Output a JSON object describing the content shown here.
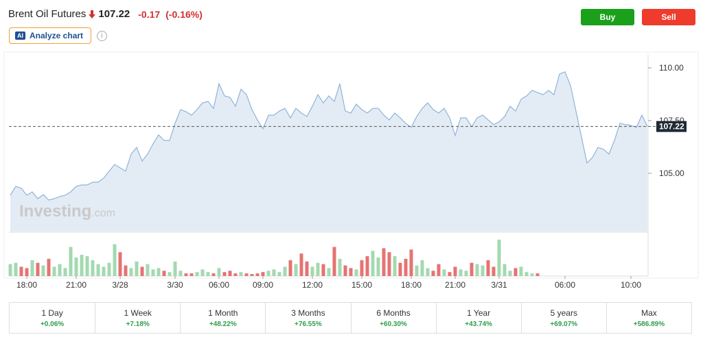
{
  "header": {
    "title": "Brent Oil Futures",
    "price": "107.22",
    "change": "-0.17",
    "change_pct": "(-0.16%)"
  },
  "buttons": {
    "buy": "Buy",
    "sell": "Sell",
    "ai_badge": "AI",
    "analyze": "Analyze chart",
    "info": "i"
  },
  "chart_data": {
    "type": "area",
    "watermark": {
      "brand": "Investing",
      "suffix": ".com"
    },
    "categories": [
      null,
      null,
      null,
      "18:00",
      null,
      null,
      null,
      null,
      null,
      null,
      null,
      null,
      "21:00",
      null,
      null,
      null,
      null,
      null,
      null,
      null,
      "3/28",
      null,
      null,
      null,
      null,
      null,
      null,
      null,
      null,
      null,
      "3/30",
      null,
      null,
      null,
      null,
      null,
      null,
      null,
      "06:00",
      null,
      null,
      null,
      null,
      null,
      null,
      null,
      "09:00",
      null,
      null,
      null,
      null,
      null,
      null,
      null,
      null,
      "12:00",
      null,
      null,
      null,
      null,
      null,
      null,
      null,
      null,
      "15:00",
      null,
      null,
      null,
      null,
      null,
      null,
      null,
      null,
      "18:00",
      null,
      null,
      null,
      null,
      null,
      null,
      null,
      "21:00",
      null,
      null,
      null,
      null,
      null,
      null,
      null,
      "3/31",
      null,
      null,
      null,
      null,
      null,
      null,
      null,
      null,
      null,
      null,
      null,
      "06:00",
      null,
      null,
      null,
      null,
      null,
      null,
      null,
      null,
      null,
      null,
      null,
      "10:00",
      null,
      null,
      null
    ],
    "series": [
      {
        "color": "#8fb3d9",
        "values": [
          103.96,
          104.38,
          104.29,
          103.96,
          104.12,
          103.8,
          103.99,
          103.73,
          103.8,
          103.9,
          103.96,
          104.12,
          104.38,
          104.45,
          104.45,
          104.58,
          104.58,
          104.77,
          105.1,
          105.42,
          105.26,
          105.1,
          105.91,
          106.23,
          105.58,
          105.91,
          106.4,
          106.82,
          106.56,
          106.56,
          107.37,
          108.02,
          107.92,
          107.76,
          108.02,
          108.34,
          108.41,
          108.08,
          109.25,
          108.67,
          108.6,
          108.18,
          108.99,
          108.73,
          108.02,
          107.53,
          107.11,
          107.76,
          107.76,
          107.95,
          108.08,
          107.63,
          108.08,
          107.86,
          107.69,
          108.18,
          108.73,
          108.34,
          108.67,
          108.41,
          109.25,
          107.95,
          107.86,
          108.28,
          108.02,
          107.86,
          108.08,
          108.08,
          107.76,
          107.53,
          107.86,
          107.63,
          107.37,
          107.18,
          107.69,
          108.08,
          108.34,
          108.02,
          107.86,
          108.08,
          107.63,
          106.79,
          107.63,
          107.63,
          107.21,
          107.63,
          107.76,
          107.53,
          107.31,
          107.44,
          107.69,
          108.18,
          107.95,
          108.51,
          108.67,
          108.93,
          108.83,
          108.73,
          108.93,
          108.73,
          109.71,
          109.81,
          109.16,
          107.95,
          106.72,
          105.49,
          105.75,
          106.23,
          106.14,
          105.91,
          106.56,
          107.37,
          107.31,
          107.27,
          107.18,
          107.76,
          107.22
        ]
      }
    ],
    "volume": {
      "up_color": "#a3d9b0",
      "down_color": "#e57373",
      "ylim": [
        0,
        60
      ],
      "values": [
        18,
        20,
        14,
        12,
        24,
        20,
        16,
        26,
        14,
        18,
        12,
        44,
        28,
        32,
        30,
        24,
        18,
        14,
        20,
        48,
        36,
        16,
        12,
        22,
        14,
        18,
        10,
        12,
        8,
        6,
        22,
        8,
        4,
        4,
        6,
        10,
        6,
        4,
        12,
        6,
        8,
        4,
        6,
        4,
        3,
        4,
        6,
        8,
        10,
        6,
        14,
        24,
        18,
        34,
        22,
        14,
        20,
        18,
        12,
        44,
        26,
        16,
        12,
        10,
        24,
        30,
        38,
        28,
        42,
        36,
        30,
        20,
        26,
        40,
        16,
        24,
        12,
        8,
        18,
        10,
        6,
        14,
        10,
        8,
        20,
        18,
        16,
        24,
        14,
        55,
        18,
        8,
        12,
        14,
        6,
        4,
        4,
        null,
        null,
        null,
        null,
        null,
        null,
        null,
        null,
        null,
        null,
        null,
        null,
        null,
        null,
        null,
        null,
        null,
        null,
        null,
        null
      ]
    },
    "ylim": [
      102.24,
      110.62
    ],
    "yticks": [
      {
        "value": 105,
        "label": "105.00"
      },
      {
        "value": 107.5,
        "label": "107.50"
      },
      {
        "value": 110,
        "label": "110.00"
      }
    ],
    "current": {
      "value": 107.22,
      "label": "107.22"
    }
  },
  "performance": [
    {
      "period": "1 Day",
      "change": "+0.06%"
    },
    {
      "period": "1 Week",
      "change": "+7.18%"
    },
    {
      "period": "1 Month",
      "change": "+48.22%"
    },
    {
      "period": "3 Months",
      "change": "+76.55%"
    },
    {
      "period": "6 Months",
      "change": "+60.30%"
    },
    {
      "period": "1 Year",
      "change": "+43.74%"
    },
    {
      "period": "5 years",
      "change": "+69.07%"
    },
    {
      "period": "Max",
      "change": "+586.89%"
    }
  ]
}
